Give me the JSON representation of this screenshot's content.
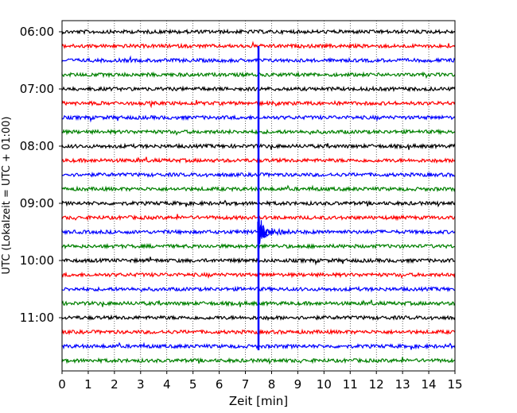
{
  "chart_data": {
    "type": "line",
    "title": "",
    "xlabel": "Zeit  [min]",
    "ylabel": "UTC (Lokalzeit = UTC + 01:00)",
    "xlim": [
      0,
      15
    ],
    "x_ticks": [
      "0",
      "1",
      "2",
      "3",
      "4",
      "5",
      "6",
      "7",
      "8",
      "9",
      "10",
      "11",
      "12",
      "13",
      "14",
      "15"
    ],
    "y_ticks": [
      "06:00",
      "07:00",
      "08:00",
      "09:00",
      "10:00",
      "11:00"
    ],
    "grid": "vertical dotted",
    "traces": [
      {
        "start": "06:00",
        "color": "#000000"
      },
      {
        "start": "06:15",
        "color": "#ff0000"
      },
      {
        "start": "06:30",
        "color": "#0000ff"
      },
      {
        "start": "06:45",
        "color": "#008000"
      },
      {
        "start": "07:00",
        "color": "#000000"
      },
      {
        "start": "07:15",
        "color": "#ff0000"
      },
      {
        "start": "07:30",
        "color": "#0000ff"
      },
      {
        "start": "07:45",
        "color": "#008000"
      },
      {
        "start": "08:00",
        "color": "#000000"
      },
      {
        "start": "08:15",
        "color": "#ff0000"
      },
      {
        "start": "08:30",
        "color": "#0000ff"
      },
      {
        "start": "08:45",
        "color": "#008000"
      },
      {
        "start": "09:00",
        "color": "#000000"
      },
      {
        "start": "09:15",
        "color": "#ff0000"
      },
      {
        "start": "09:30",
        "color": "#0000ff"
      },
      {
        "start": "09:45",
        "color": "#008000"
      },
      {
        "start": "10:00",
        "color": "#000000"
      },
      {
        "start": "10:15",
        "color": "#ff0000"
      },
      {
        "start": "10:30",
        "color": "#0000ff"
      },
      {
        "start": "10:45",
        "color": "#008000"
      },
      {
        "start": "11:00",
        "color": "#000000"
      },
      {
        "start": "11:15",
        "color": "#ff0000"
      },
      {
        "start": "11:30",
        "color": "#0000ff"
      },
      {
        "start": "11:45",
        "color": "#008000"
      }
    ],
    "event": {
      "trace_start": "09:30",
      "minute": 7.5,
      "color": "#0000ff"
    }
  }
}
